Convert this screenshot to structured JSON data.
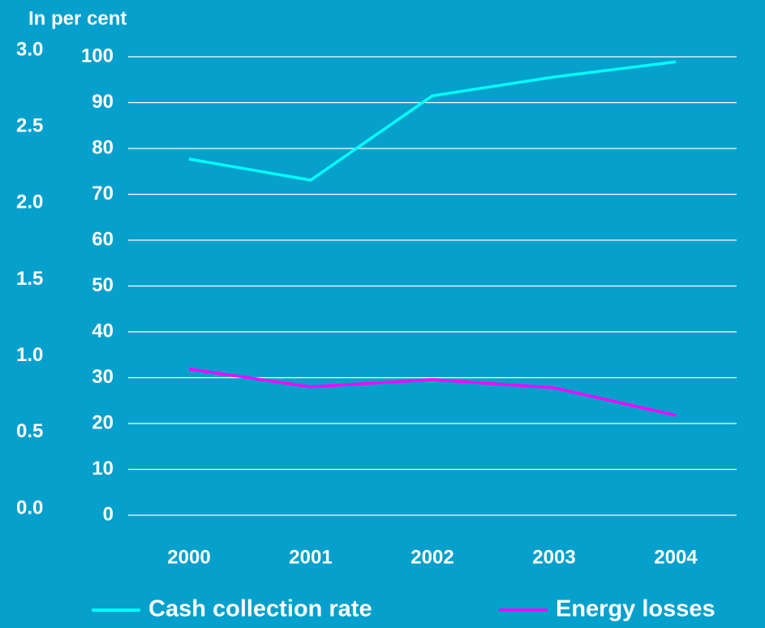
{
  "chart_data": {
    "type": "line",
    "title": "In per cent",
    "categories": [
      "2000",
      "2001",
      "2002",
      "2003",
      "2004"
    ],
    "series": [
      {
        "name": "Cash collection rate",
        "color": "#00ffff",
        "values": [
          77.7,
          73.1,
          91.5,
          95.6,
          98.9
        ]
      },
      {
        "name": "Energy losses",
        "color": "#ff00ff",
        "values": [
          31.9,
          28.0,
          29.6,
          27.8,
          21.8
        ]
      }
    ],
    "ylim": [
      0,
      100
    ],
    "yticks": [
      0,
      10,
      20,
      30,
      40,
      50,
      60,
      70,
      80,
      90,
      100
    ],
    "y2lim": [
      0,
      3
    ],
    "y2ticks": [
      {
        "value": 0,
        "label": "0.0"
      },
      {
        "value": 0.5,
        "label": "0.5"
      },
      {
        "value": 1,
        "label": "1.0"
      },
      {
        "value": 1.5,
        "label": "1.5"
      },
      {
        "value": 2,
        "label": "2.0"
      },
      {
        "value": 2.5,
        "label": "2.5"
      },
      {
        "value": 3,
        "label": "3.0"
      }
    ],
    "grid": true,
    "legend": "bottom"
  }
}
